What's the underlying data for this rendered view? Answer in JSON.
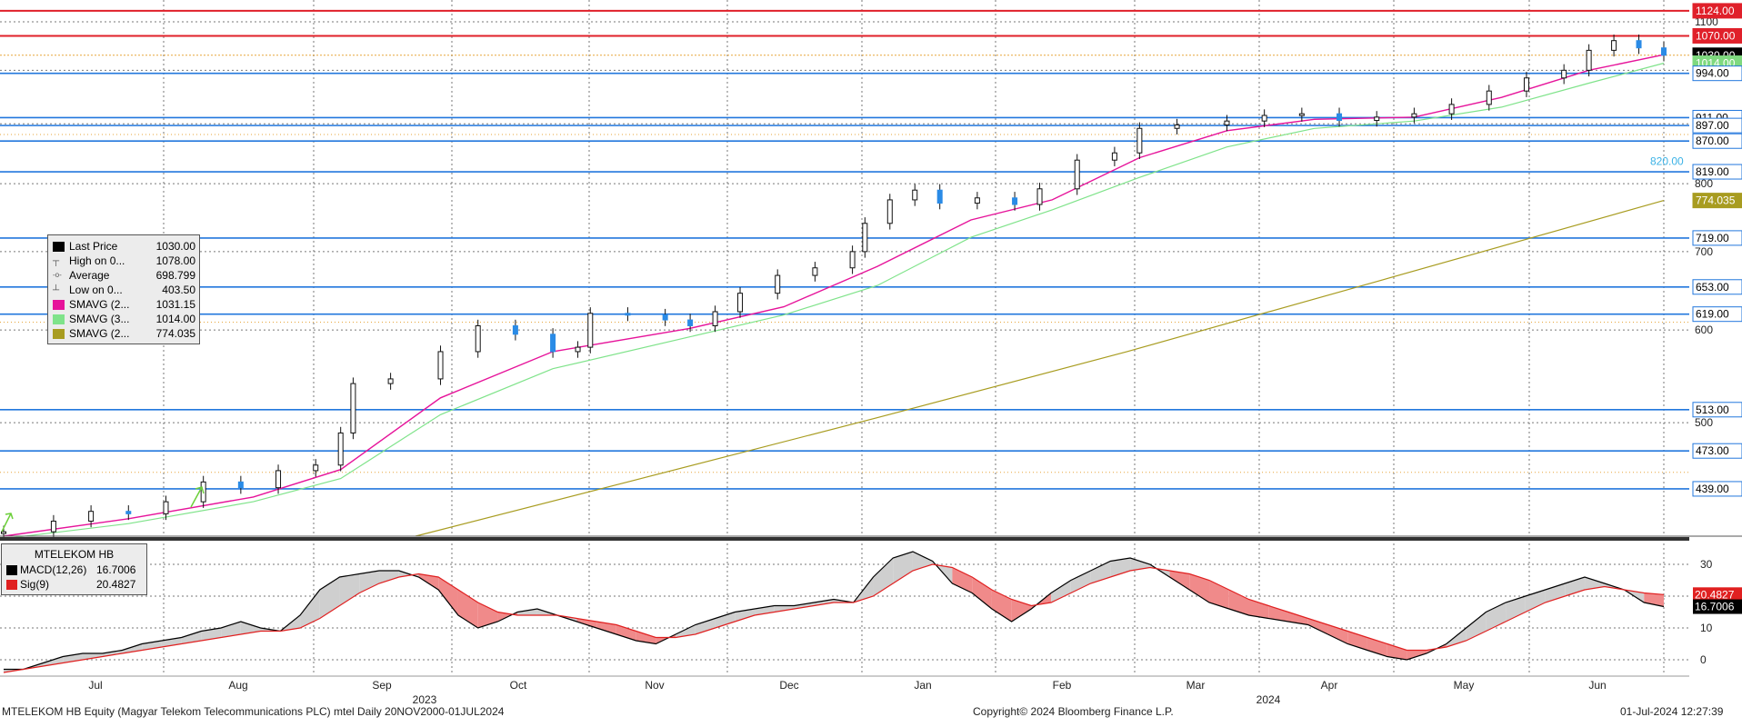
{
  "chart_data": [
    {
      "type": "candlestick",
      "x_months": [
        "Jul",
        "Aug",
        "Sep",
        "Oct",
        "Nov",
        "Dec",
        "Jan",
        "Feb",
        "Mar",
        "Apr",
        "May",
        "Jun"
      ],
      "x_years": [
        "2023",
        "2024"
      ],
      "y_ticks": [
        1100,
        1000,
        900,
        800,
        700,
        600,
        500
      ],
      "y_scale": "log",
      "ylim": [
        400,
        1140
      ],
      "grid": true,
      "close_series": [
        {
          "t": 0,
          "v": 403.5
        },
        {
          "t": 8,
          "v": 412
        },
        {
          "t": 14,
          "v": 420
        },
        {
          "t": 20,
          "v": 418
        },
        {
          "t": 26,
          "v": 428
        },
        {
          "t": 32,
          "v": 445
        },
        {
          "t": 38,
          "v": 440
        },
        {
          "t": 44,
          "v": 455
        },
        {
          "t": 50,
          "v": 460
        },
        {
          "t": 54,
          "v": 490
        },
        {
          "t": 56,
          "v": 540
        },
        {
          "t": 62,
          "v": 545
        },
        {
          "t": 70,
          "v": 575
        },
        {
          "t": 76,
          "v": 605
        },
        {
          "t": 82,
          "v": 595
        },
        {
          "t": 88,
          "v": 575
        },
        {
          "t": 92,
          "v": 580
        },
        {
          "t": 94,
          "v": 620
        },
        {
          "t": 100,
          "v": 618
        },
        {
          "t": 106,
          "v": 612
        },
        {
          "t": 110,
          "v": 605
        },
        {
          "t": 114,
          "v": 622
        },
        {
          "t": 118,
          "v": 645
        },
        {
          "t": 124,
          "v": 668
        },
        {
          "t": 130,
          "v": 678
        },
        {
          "t": 136,
          "v": 700
        },
        {
          "t": 138,
          "v": 740
        },
        {
          "t": 142,
          "v": 775
        },
        {
          "t": 146,
          "v": 790
        },
        {
          "t": 150,
          "v": 770
        },
        {
          "t": 156,
          "v": 778
        },
        {
          "t": 162,
          "v": 768
        },
        {
          "t": 166,
          "v": 792
        },
        {
          "t": 172,
          "v": 838
        },
        {
          "t": 178,
          "v": 850
        },
        {
          "t": 182,
          "v": 892
        },
        {
          "t": 188,
          "v": 898
        },
        {
          "t": 196,
          "v": 905
        },
        {
          "t": 202,
          "v": 915
        },
        {
          "t": 208,
          "v": 918
        },
        {
          "t": 214,
          "v": 906
        },
        {
          "t": 220,
          "v": 912
        },
        {
          "t": 226,
          "v": 918
        },
        {
          "t": 232,
          "v": 935
        },
        {
          "t": 238,
          "v": 960
        },
        {
          "t": 244,
          "v": 985
        },
        {
          "t": 250,
          "v": 1000
        },
        {
          "t": 254,
          "v": 1040
        },
        {
          "t": 258,
          "v": 1060
        },
        {
          "t": 262,
          "v": 1045
        },
        {
          "t": 266,
          "v": 1030
        }
      ],
      "sma_fast": [
        {
          "t": 0,
          "v": 400
        },
        {
          "t": 20,
          "v": 414
        },
        {
          "t": 40,
          "v": 432
        },
        {
          "t": 54,
          "v": 456
        },
        {
          "t": 70,
          "v": 525
        },
        {
          "t": 88,
          "v": 575
        },
        {
          "t": 110,
          "v": 602
        },
        {
          "t": 125,
          "v": 628
        },
        {
          "t": 140,
          "v": 680
        },
        {
          "t": 155,
          "v": 745
        },
        {
          "t": 168,
          "v": 775
        },
        {
          "t": 182,
          "v": 842
        },
        {
          "t": 196,
          "v": 888
        },
        {
          "t": 210,
          "v": 908
        },
        {
          "t": 226,
          "v": 912
        },
        {
          "t": 240,
          "v": 948
        },
        {
          "t": 254,
          "v": 1000
        },
        {
          "t": 266,
          "v": 1031.15
        }
      ],
      "sma_slow": [
        {
          "t": 0,
          "v": 398
        },
        {
          "t": 20,
          "v": 410
        },
        {
          "t": 40,
          "v": 428
        },
        {
          "t": 54,
          "v": 448
        },
        {
          "t": 70,
          "v": 508
        },
        {
          "t": 88,
          "v": 556
        },
        {
          "t": 110,
          "v": 592
        },
        {
          "t": 125,
          "v": 618
        },
        {
          "t": 140,
          "v": 655
        },
        {
          "t": 155,
          "v": 720
        },
        {
          "t": 168,
          "v": 760
        },
        {
          "t": 182,
          "v": 810
        },
        {
          "t": 196,
          "v": 860
        },
        {
          "t": 210,
          "v": 892
        },
        {
          "t": 226,
          "v": 905
        },
        {
          "t": 240,
          "v": 930
        },
        {
          "t": 254,
          "v": 975
        },
        {
          "t": 266,
          "v": 1014.0
        }
      ],
      "sma_long": [
        {
          "t": 66,
          "v": 400
        },
        {
          "t": 100,
          "v": 445
        },
        {
          "t": 140,
          "v": 505
        },
        {
          "t": 180,
          "v": 575
        },
        {
          "t": 220,
          "v": 660
        },
        {
          "t": 266,
          "v": 774.035
        }
      ],
      "horizontal_levels": [
        {
          "label": "1124.00",
          "color": "#e0202a",
          "style": "solid"
        },
        {
          "label": "1070.00",
          "color": "#e0202a",
          "style": "solid"
        },
        {
          "label": "1030.00",
          "color": "#000000",
          "style": "dotted"
        },
        {
          "label": "1014.00",
          "color": "#7fd97f",
          "style": "none"
        },
        {
          "label": "994.00",
          "color": "#2277dd",
          "style": "solid"
        },
        {
          "label": "911.00",
          "color": "#2277dd",
          "style": "solid"
        },
        {
          "label": "897.00",
          "color": "#2277dd",
          "style": "solid"
        },
        {
          "label": "870.00",
          "color": "#2277dd",
          "style": "solid"
        },
        {
          "label": "819.00",
          "color": "#2277dd",
          "style": "solid"
        },
        {
          "label": "774.035",
          "color": "#a89c20",
          "style": "none"
        },
        {
          "label": "719.00",
          "color": "#2277dd",
          "style": "solid"
        },
        {
          "label": "653.00",
          "color": "#2277dd",
          "style": "solid"
        },
        {
          "label": "619.00",
          "color": "#2277dd",
          "style": "solid"
        },
        {
          "label": "513.00",
          "color": "#2277dd",
          "style": "solid"
        },
        {
          "label": "473.00",
          "color": "#2277dd",
          "style": "solid"
        },
        {
          "label": "439.00",
          "color": "#2277dd",
          "style": "solid"
        }
      ],
      "annotation": "820.00",
      "legend": [
        {
          "name": "Last Price",
          "value": "1030.00",
          "color": "#000000",
          "symbol": "square"
        },
        {
          "name": "High on 0...",
          "value": "1078.00",
          "color": "#555555",
          "symbol": "high"
        },
        {
          "name": "Average",
          "value": "698.799",
          "color": "#555555",
          "symbol": "avg"
        },
        {
          "name": "Low on 0...",
          "value": "403.50",
          "color": "#555555",
          "symbol": "low"
        },
        {
          "name": "SMAVG (2...",
          "value": "1031.15",
          "color": "#e6139a",
          "symbol": "square"
        },
        {
          "name": "SMAVG (3...",
          "value": "1014.00",
          "color": "#7fe38a",
          "symbol": "square"
        },
        {
          "name": "SMAVG (2...",
          "value": "774.035",
          "color": "#a89c20",
          "symbol": "square"
        }
      ]
    },
    {
      "type": "line",
      "title": "MTELEKOM HB",
      "y_ticks": [
        30,
        20,
        10,
        0
      ],
      "ylim": [
        -4,
        36
      ],
      "series": [
        {
          "name": "MACD(12,26)",
          "value": "16.7006",
          "color": "#000000",
          "values": [
            -3,
            -3,
            -1,
            1,
            2,
            2,
            3,
            5,
            6,
            7,
            9,
            10,
            12,
            10,
            9,
            14,
            22,
            26,
            27,
            28,
            28,
            26,
            22,
            14,
            10,
            12,
            15,
            16,
            14,
            12,
            10,
            8,
            6,
            5,
            8,
            11,
            13,
            15,
            16,
            17,
            17,
            18,
            19,
            18,
            26,
            32,
            34,
            31,
            24,
            21,
            16,
            12,
            16,
            21,
            25,
            28,
            31,
            32,
            30,
            26,
            22,
            18,
            16,
            14,
            13,
            12,
            11,
            8,
            5,
            3,
            1,
            0,
            2,
            5,
            10,
            15,
            18,
            20,
            22,
            24,
            26,
            24,
            22,
            18,
            16.7
          ]
        },
        {
          "name": "Sig(9)",
          "value": "20.4827",
          "color": "#e02020",
          "values": [
            -4,
            -3,
            -2,
            -1,
            0,
            1,
            2,
            3,
            4,
            5,
            6,
            7,
            8,
            9,
            9,
            10,
            13,
            17,
            21,
            24,
            26,
            27,
            26,
            22,
            18,
            15,
            14,
            14,
            14,
            13,
            12,
            11,
            9,
            7,
            7,
            8,
            10,
            12,
            14,
            15,
            16,
            17,
            18,
            18,
            20,
            24,
            28,
            30,
            29,
            26,
            22,
            19,
            17,
            18,
            21,
            24,
            26,
            28,
            29,
            28,
            27,
            25,
            22,
            19,
            17,
            15,
            13,
            11,
            9,
            7,
            5,
            3,
            3,
            4,
            6,
            9,
            12,
            15,
            18,
            20,
            22,
            23,
            22,
            21,
            20.5
          ]
        }
      ]
    }
  ],
  "footer": {
    "left": "MTELEKOM HB Equity (Magyar Telekom Telecommunications PLC) mtel  Daily 20NOV2000-01JUL2024",
    "center": "Copyright© 2024 Bloomberg Finance L.P.",
    "right": "01-Jul-2024 12:27:39"
  }
}
